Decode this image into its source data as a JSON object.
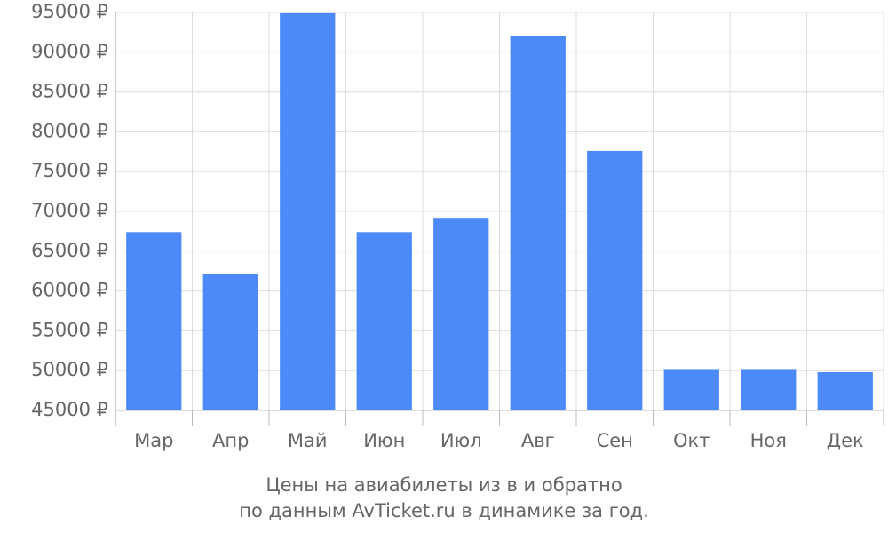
{
  "chart_data": {
    "type": "bar",
    "title": [
      "Цены на авиабилеты из  в  и обратно",
      "по данным AvTicket.ru в динамике за год."
    ],
    "categories": [
      "Мар",
      "Апр",
      "Май",
      "Июн",
      "Июл",
      "Авг",
      "Сен",
      "Окт",
      "Ноя",
      "Дек"
    ],
    "values": [
      67400,
      62100,
      94900,
      67400,
      69200,
      92100,
      77600,
      50200,
      50200,
      49800
    ],
    "color": "#4d8af9",
    "ylim": [
      45000,
      95000
    ],
    "yticks": [
      {
        "value": 45000,
        "label": "45000 ₽"
      },
      {
        "value": 50000,
        "label": "50000 ₽"
      },
      {
        "value": 55000,
        "label": "55000 ₽"
      },
      {
        "value": 60000,
        "label": "60000 ₽"
      },
      {
        "value": 65000,
        "label": "65000 ₽"
      },
      {
        "value": 70000,
        "label": "70000 ₽"
      },
      {
        "value": 75000,
        "label": "75000 ₽"
      },
      {
        "value": 80000,
        "label": "80000 ₽"
      },
      {
        "value": 85000,
        "label": "85000 ₽"
      },
      {
        "value": 90000,
        "label": "90000 ₽"
      },
      {
        "value": 95000,
        "label": "95000 ₽"
      }
    ],
    "grid": true
  }
}
